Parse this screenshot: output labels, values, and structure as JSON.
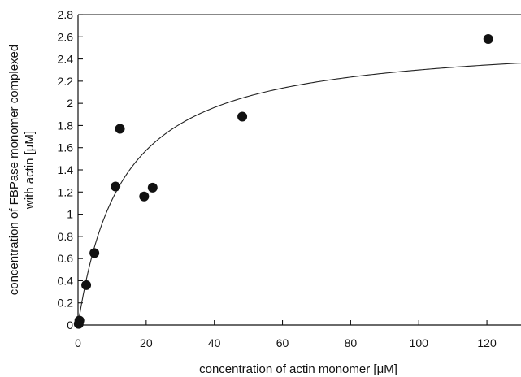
{
  "chart_data": {
    "type": "scatter",
    "xlabel": "concentration of actin monomer [μM]",
    "ylabel_lines": [
      "concentration of FBPase monomer complexed",
      "with actin [μM]"
    ],
    "xlim": [
      0,
      130
    ],
    "ylim": [
      0,
      2.8
    ],
    "xticks": [
      0,
      20,
      40,
      60,
      80,
      100,
      120
    ],
    "yticks": [
      0,
      0.2,
      0.4,
      0.6,
      0.8,
      1,
      1.2,
      1.4,
      1.6,
      1.8,
      2,
      2.2,
      2.4,
      2.6,
      2.8
    ],
    "ytick_labels": [
      "0",
      "0.2",
      "0.4",
      "0.6",
      "0.8",
      "1",
      "1.2",
      "1.4",
      "1.6",
      "1.8",
      "2",
      "2.2",
      "2.4",
      "2.6",
      "2.8"
    ],
    "grid": false,
    "series": [
      {
        "points": [
          {
            "x": 0.2,
            "y": 0.01
          },
          {
            "x": 0.4,
            "y": 0.04
          },
          {
            "x": 2.4,
            "y": 0.36
          },
          {
            "x": 4.8,
            "y": 0.65
          },
          {
            "x": 11.0,
            "y": 1.25
          },
          {
            "x": 12.3,
            "y": 1.77
          },
          {
            "x": 19.4,
            "y": 1.16
          },
          {
            "x": 21.9,
            "y": 1.24
          },
          {
            "x": 48.2,
            "y": 1.88
          },
          {
            "x": 120.4,
            "y": 2.58
          }
        ]
      }
    ],
    "fit_curve": {
      "type": "hyperbolic",
      "bmax": 2.6,
      "kd": 13.0,
      "x_range": [
        0,
        130
      ]
    }
  }
}
